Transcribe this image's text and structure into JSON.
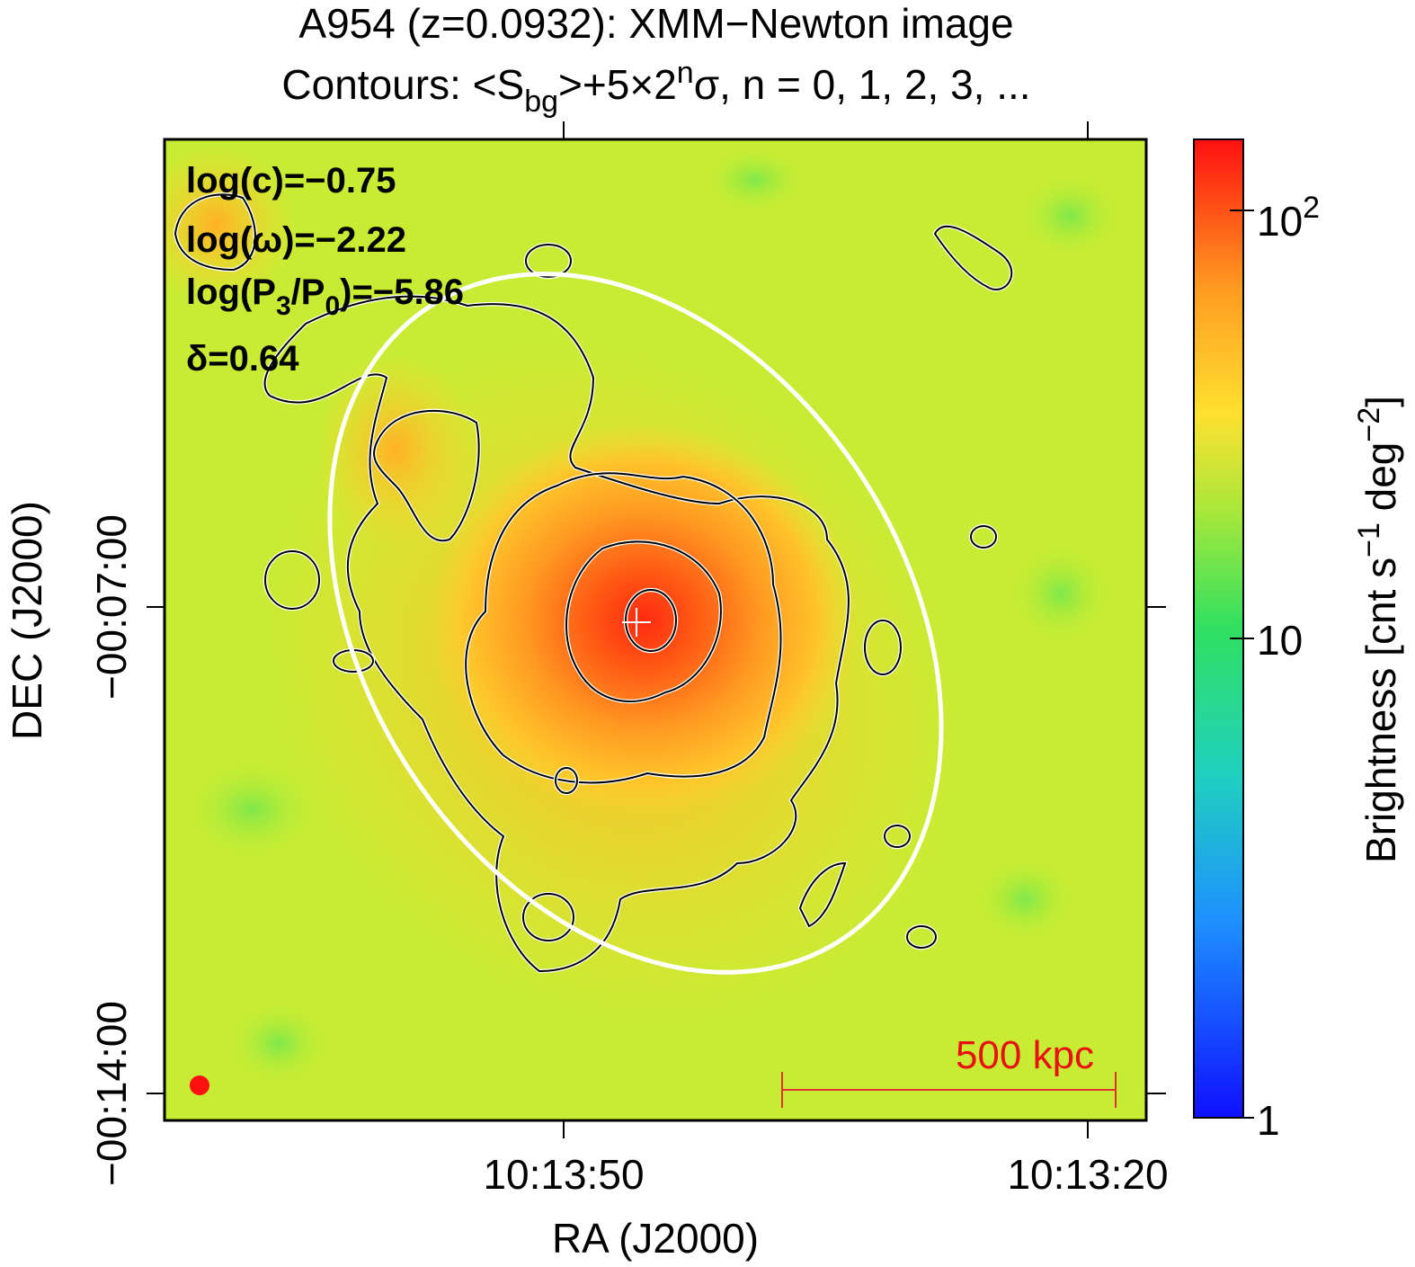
{
  "title": "A954 (z=0.0932): XMM−Newton image",
  "subtitle": {
    "parts": [
      "Contours: <S",
      "bg",
      ">+5×2",
      "n",
      "σ, n = 0, 1, 2, 3, ..."
    ]
  },
  "annotations": {
    "c": "log(c)=−0.75",
    "w": "log(ω)=−2.22",
    "p": [
      "log(P",
      "3",
      "/P",
      "0",
      ")=−5.86"
    ],
    "d": "δ=0.64"
  },
  "scale_bar": "500 kpc",
  "x_axis": {
    "label": "RA (J2000)",
    "ticks": [
      "10:13:50",
      "10:13:20"
    ]
  },
  "y_axis": {
    "label": "DEC (J2000)",
    "ticks": [
      "−00:07:00",
      "−00:14:00"
    ]
  },
  "colorbar": {
    "label": [
      "Brightness [cnt s",
      "−1",
      " deg",
      "−2",
      "]"
    ],
    "ticks": [
      "1",
      "10",
      [
        "10",
        "2"
      ]
    ]
  }
}
